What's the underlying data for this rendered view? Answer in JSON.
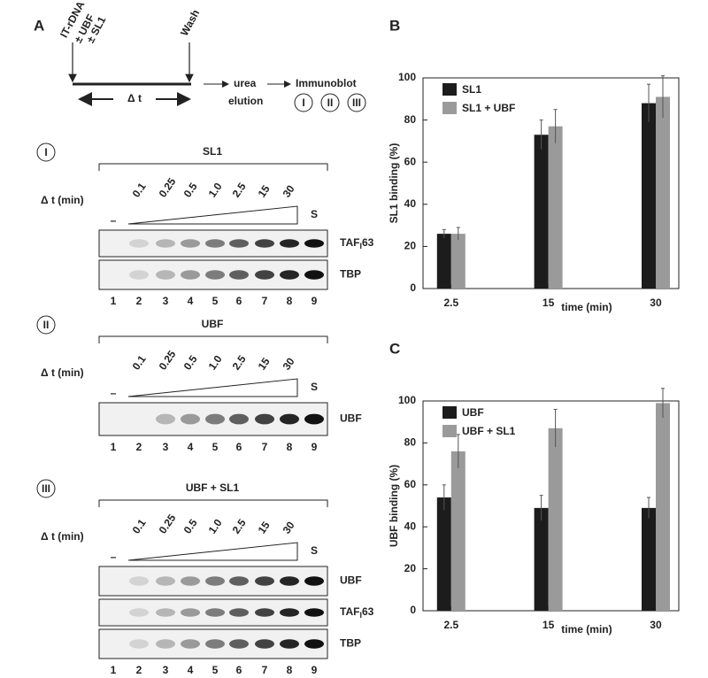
{
  "panel_a": {
    "label": "A",
    "schema": {
      "inputs": [
        "IT-rDNA",
        "± UBF",
        "± SL1"
      ],
      "wash": "Wash",
      "delta": "Δ t",
      "step": [
        "urea",
        "elution"
      ],
      "readout": "Immunoblot",
      "blots": [
        "I",
        "II",
        "III"
      ]
    },
    "sections": [
      {
        "id": "I",
        "title": "SL1",
        "time_label": "Δ t (min)",
        "times": [
          "0.1",
          "0.25",
          "0.5",
          "1.0",
          "2.5",
          "15",
          "30"
        ],
        "minus": "–",
        "standard": "S",
        "blots": [
          {
            "label": "TAF",
            "sub": "I",
            "suffix": "63"
          },
          {
            "label": "TBP"
          }
        ],
        "lanes": [
          1,
          2,
          3,
          4,
          5,
          6,
          7,
          8,
          9
        ]
      },
      {
        "id": "II",
        "title": "UBF",
        "time_label": "Δ t (min)",
        "times": [
          "0.1",
          "0.25",
          "0.5",
          "1.0",
          "2.5",
          "15",
          "30"
        ],
        "minus": "–",
        "standard": "S",
        "blots": [
          {
            "label": "UBF"
          }
        ],
        "lanes": [
          1,
          2,
          3,
          4,
          5,
          6,
          7,
          8,
          9
        ]
      },
      {
        "id": "III",
        "title": "UBF + SL1",
        "time_label": "Δ t (min)",
        "times": [
          "0.1",
          "0.25",
          "0.5",
          "1.0",
          "2.5",
          "15",
          "30"
        ],
        "minus": "–",
        "standard": "S",
        "blots": [
          {
            "label": "UBF"
          },
          {
            "label": "TAF",
            "sub": "I",
            "suffix": "63"
          },
          {
            "label": "TBP"
          }
        ],
        "lanes": [
          1,
          2,
          3,
          4,
          5,
          6,
          7,
          8,
          9
        ]
      }
    ]
  },
  "chart_data": [
    {
      "type": "bar",
      "panel_label": "B",
      "x_label": "time (min)",
      "y_label": "SL1 binding (%)",
      "categories": [
        "2.5",
        "15",
        "30"
      ],
      "ylim": [
        0,
        100
      ],
      "yticks": [
        0,
        20,
        40,
        60,
        80,
        100
      ],
      "legend": "upper left",
      "series": [
        {
          "name": "SL1",
          "color": "#1c1c1c",
          "values": [
            26,
            73,
            88
          ],
          "errors": [
            2,
            7,
            9
          ]
        },
        {
          "name": "SL1 + UBF",
          "color": "#9a9a9a",
          "values": [
            26,
            77,
            91
          ],
          "errors": [
            3,
            8,
            10
          ]
        }
      ]
    },
    {
      "type": "bar",
      "panel_label": "C",
      "x_label": "time (min)",
      "y_label": "UBF binding (%)",
      "categories": [
        "2.5",
        "15",
        "30"
      ],
      "ylim": [
        0,
        100
      ],
      "yticks": [
        0,
        20,
        40,
        60,
        80,
        100
      ],
      "legend": "upper left",
      "series": [
        {
          "name": "UBF",
          "color": "#1c1c1c",
          "values": [
            54,
            49,
            49
          ],
          "errors": [
            6,
            6,
            5
          ]
        },
        {
          "name": "UBF + SL1",
          "color": "#9a9a9a",
          "values": [
            76,
            87,
            99
          ],
          "errors": [
            8,
            9,
            7
          ]
        }
      ]
    }
  ]
}
